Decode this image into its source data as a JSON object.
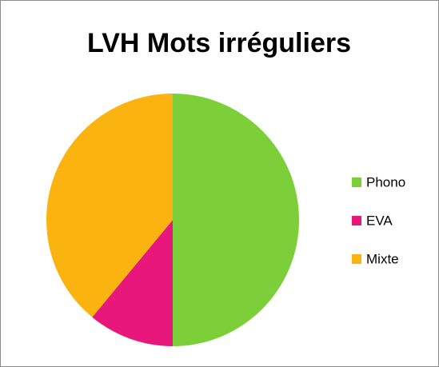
{
  "chart_data": {
    "type": "pie",
    "title": "LVH Mots irréguliers",
    "categories": [
      "Phono",
      "EVA",
      "Mixte"
    ],
    "values": [
      50,
      11,
      39
    ],
    "colors": [
      "#7dcf3a",
      "#e8177b",
      "#fbb310"
    ],
    "legend": "right"
  }
}
